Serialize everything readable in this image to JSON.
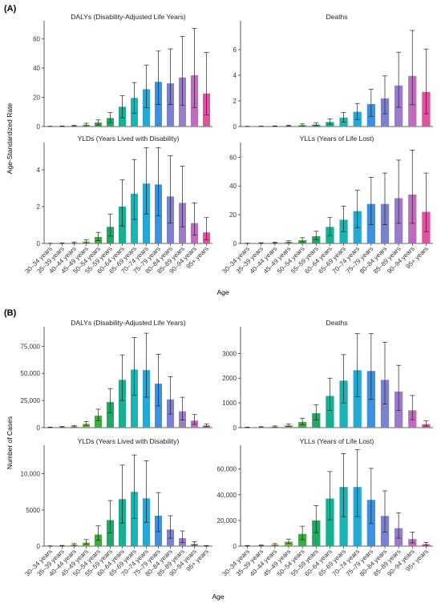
{
  "figure": {
    "panel_a_label": "(A)",
    "panel_b_label": "(B)",
    "panel_a_ylabel": "Age-Standardized Rate",
    "panel_b_ylabel": "Number of Cases",
    "xlabel": "Age",
    "age_groups": [
      "30–34 years",
      "35–39 years",
      "40–44 years",
      "45–49 years",
      "50–54 years",
      "55–59 years",
      "60–64 years",
      "65–69 years",
      "70–74 years",
      "75–79 years",
      "80–84 years",
      "85–89 years",
      "90–94 years",
      "95+ years"
    ],
    "colors": [
      "#b8ae35",
      "#a8b637",
      "#8fbd35",
      "#66b936",
      "#3aae3e",
      "#1fa967",
      "#18b092",
      "#1ab4b4",
      "#25a9d4",
      "#3a92e0",
      "#7a82d0",
      "#9a7cc8",
      "#bf6cc0",
      "#e052a0"
    ]
  },
  "chart_data": [
    {
      "type": "bar",
      "panel": "A",
      "title": "DALYs (Disability-Adjusted Life Years)",
      "ylim": [
        0,
        70
      ],
      "yticks": [
        0,
        20,
        40,
        60
      ],
      "ytick_labels": [
        "0",
        "20",
        "40",
        "60"
      ],
      "values": [
        0.1,
        0.2,
        0.5,
        1.2,
        2.8,
        5.8,
        13.5,
        19.5,
        25.5,
        30.5,
        29.5,
        33.5,
        35,
        22.5
      ],
      "err_low": [
        0.05,
        0.1,
        0.3,
        0.5,
        1.0,
        2.5,
        6,
        9,
        13,
        15,
        15,
        14.5,
        13,
        8
      ],
      "err_high": [
        0.2,
        0.4,
        0.8,
        2.2,
        4.5,
        9.5,
        21,
        30,
        42,
        51.5,
        53,
        61.5,
        67,
        50.5
      ]
    },
    {
      "type": "bar",
      "panel": "A",
      "title": "Deaths",
      "ylim": [
        0,
        8
      ],
      "yticks": [
        0,
        2,
        4,
        6
      ],
      "ytick_labels": [
        "0",
        "2",
        "4",
        "6"
      ],
      "values": [
        0.01,
        0.01,
        0.02,
        0.05,
        0.1,
        0.15,
        0.35,
        0.7,
        1.15,
        1.75,
        2.2,
        3.2,
        3.95,
        2.7
      ],
      "err_low": [
        0.0,
        0.0,
        0.01,
        0.02,
        0.04,
        0.07,
        0.18,
        0.35,
        0.55,
        0.8,
        1.0,
        1.5,
        1.7,
        1.0
      ],
      "err_high": [
        0.02,
        0.03,
        0.05,
        0.1,
        0.2,
        0.3,
        0.6,
        1.1,
        1.8,
        2.9,
        3.95,
        5.8,
        7.5,
        6.05
      ]
    },
    {
      "type": "bar",
      "panel": "A",
      "title": "YLDs (Years Lived with Disability)",
      "ylim": [
        0,
        5.3
      ],
      "yticks": [
        0,
        2,
        4
      ],
      "ytick_labels": [
        "0",
        "2",
        "4"
      ],
      "values": [
        0.0,
        0.01,
        0.03,
        0.1,
        0.35,
        0.9,
        2.0,
        2.7,
        3.25,
        3.2,
        2.55,
        2.2,
        1.1,
        0.6
      ],
      "err_low": [
        0.0,
        0.0,
        0.01,
        0.04,
        0.15,
        0.4,
        0.95,
        1.3,
        1.6,
        1.5,
        1.1,
        0.9,
        0.45,
        0.2
      ],
      "err_high": [
        0.01,
        0.03,
        0.08,
        0.2,
        0.6,
        1.6,
        3.45,
        4.55,
        5.2,
        5.2,
        4.75,
        4.2,
        2.2,
        1.4
      ]
    },
    {
      "type": "bar",
      "panel": "A",
      "title": "YLLs (Years of Life Lost)",
      "ylim": [
        0,
        68
      ],
      "yticks": [
        0,
        20,
        40,
        60
      ],
      "ytick_labels": [
        "0",
        "20",
        "40",
        "60"
      ],
      "values": [
        0.1,
        0.3,
        0.5,
        1.0,
        2.2,
        5.0,
        11.5,
        16.5,
        22.5,
        27.5,
        27.5,
        31.5,
        34,
        22
      ],
      "err_low": [
        0.05,
        0.1,
        0.2,
        0.5,
        1.0,
        2.5,
        5.5,
        8,
        11,
        13,
        13,
        14,
        14,
        8
      ],
      "err_high": [
        0.2,
        0.5,
        0.9,
        1.8,
        4,
        8.5,
        18,
        26,
        37,
        46,
        49,
        58,
        65,
        49
      ]
    },
    {
      "type": "bar",
      "panel": "B",
      "title": "DALYs (Disability-Adjusted Life Years)",
      "ylim": [
        0,
        90000
      ],
      "yticks": [
        0,
        25000,
        50000,
        75000
      ],
      "ytick_labels": [
        "0",
        "25,000",
        "50,000",
        "75,000"
      ],
      "values": [
        300,
        600,
        1200,
        3500,
        11000,
        23500,
        44000,
        53500,
        53000,
        40500,
        26000,
        15000,
        6500,
        2000
      ],
      "err_low": [
        150,
        300,
        700,
        2000,
        6500,
        13500,
        25000,
        30000,
        28000,
        20000,
        12500,
        7000,
        3000,
        800
      ],
      "err_high": [
        500,
        1000,
        2000,
        5500,
        17000,
        36000,
        67000,
        83000,
        87000,
        67500,
        47000,
        28000,
        12000,
        3500
      ]
    },
    {
      "type": "bar",
      "panel": "B",
      "title": "Deaths",
      "ylim": [
        0,
        3950
      ],
      "yticks": [
        0,
        1000,
        2000,
        3000
      ],
      "ytick_labels": [
        "0",
        "1000",
        "2000",
        "3000"
      ],
      "values": [
        10,
        20,
        40,
        90,
        230,
        580,
        1280,
        1900,
        2320,
        2290,
        1930,
        1460,
        700,
        140
      ],
      "err_low": [
        5,
        10,
        20,
        50,
        120,
        310,
        700,
        1000,
        1250,
        1150,
        950,
        700,
        320,
        60
      ],
      "err_high": [
        20,
        40,
        70,
        150,
        380,
        920,
        2000,
        2950,
        3800,
        3800,
        3450,
        2520,
        1300,
        270
      ]
    },
    {
      "type": "bar",
      "panel": "B",
      "title": "YLDs (Years Lived with Disability)",
      "ylim": [
        0,
        13500
      ],
      "yticks": [
        0,
        5000,
        10000
      ],
      "ytick_labels": [
        "0",
        "5000",
        "10,000"
      ],
      "values": [
        20,
        50,
        200,
        500,
        1600,
        3600,
        6500,
        7500,
        6600,
        4200,
        2300,
        1100,
        300,
        30
      ],
      "err_low": [
        10,
        25,
        100,
        250,
        800,
        1800,
        3200,
        3800,
        3300,
        2000,
        1100,
        500,
        130,
        10
      ],
      "err_high": [
        40,
        100,
        350,
        900,
        2800,
        6300,
        11200,
        12600,
        11800,
        7400,
        4200,
        2100,
        600,
        80
      ]
    },
    {
      "type": "bar",
      "panel": "B",
      "title": "YLLs (Years of Life Lost)",
      "ylim": [
        0,
        76000
      ],
      "yticks": [
        0,
        20000,
        40000,
        60000
      ],
      "ytick_labels": [
        "0",
        "20,000",
        "40,000",
        "60,000"
      ],
      "values": [
        300,
        500,
        1200,
        3500,
        9500,
        20000,
        37000,
        46000,
        46000,
        36000,
        23500,
        14000,
        5500,
        1500
      ],
      "err_low": [
        150,
        250,
        600,
        2000,
        5000,
        10500,
        20500,
        23000,
        23000,
        17500,
        11000,
        6200,
        2500,
        600
      ],
      "err_high": [
        500,
        900,
        2000,
        5500,
        15500,
        31500,
        58000,
        72000,
        75000,
        60500,
        43000,
        26000,
        11000,
        2900
      ]
    }
  ]
}
